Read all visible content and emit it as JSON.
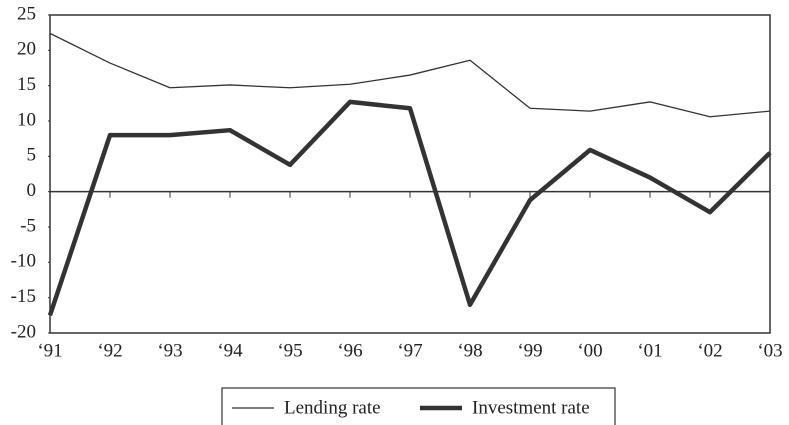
{
  "chart_data": {
    "type": "line",
    "categories": [
      "‘91",
      "‘92",
      "‘93",
      "‘94",
      "‘95",
      "‘96",
      "‘97",
      "‘98",
      "‘99",
      "‘00",
      "‘01",
      "‘02",
      "‘03"
    ],
    "series": [
      {
        "name": "Lending rate",
        "color": "#333333",
        "width": 1.3,
        "values": [
          22.4,
          18.2,
          14.7,
          15.1,
          14.7,
          15.2,
          16.5,
          18.6,
          11.8,
          11.4,
          12.7,
          10.6,
          11.4
        ]
      },
      {
        "name": "Investment rate",
        "color": "#333333",
        "width": 4.5,
        "values": [
          -17.5,
          8,
          8,
          8.7,
          3.8,
          12.7,
          11.8,
          -16,
          -1.2,
          5.9,
          2,
          -2.9,
          5.5
        ]
      }
    ],
    "ylim": [
      -20,
      25
    ],
    "yticks": [
      -20,
      -15,
      -10,
      -5,
      0,
      5,
      10,
      15,
      20,
      25
    ],
    "legend": "bottom"
  }
}
